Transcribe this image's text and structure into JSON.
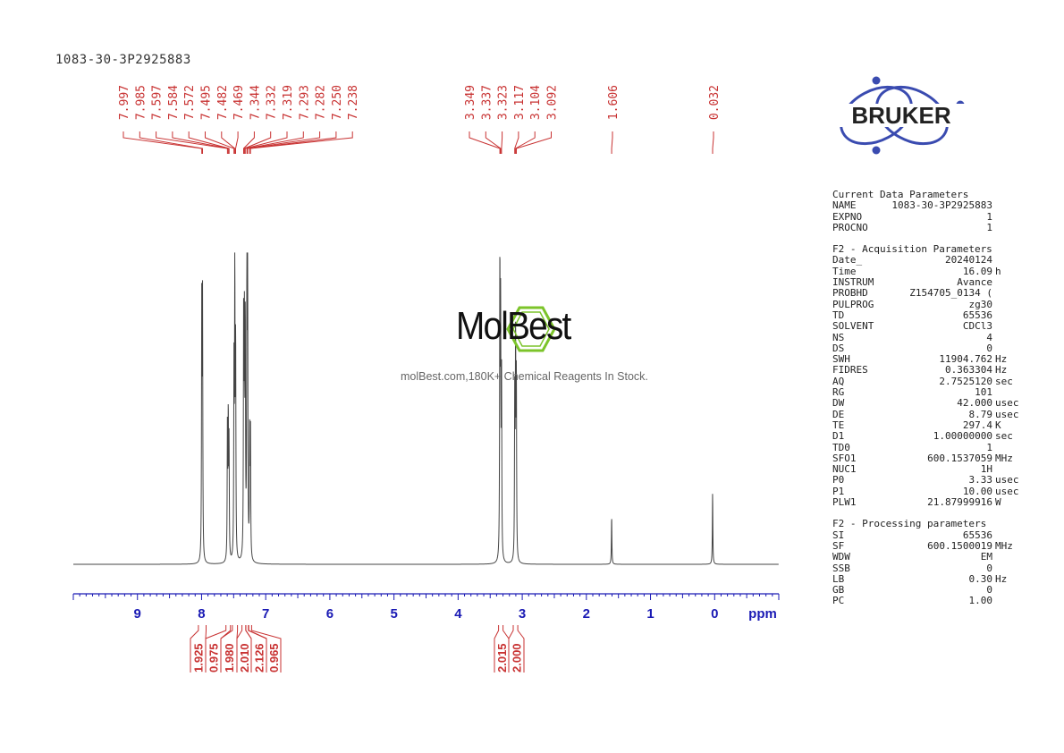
{
  "sample_id": "1083-30-3P2925883",
  "logo": {
    "brand": "BRUKER"
  },
  "watermark": {
    "brand": "MolBest",
    "tagline": "molBest.com,180K+ Chemical Reagents In Stock."
  },
  "colors": {
    "spectrum": "#444444",
    "peak_labels": "#c83232",
    "axis": "#1a1ab4",
    "logo_blue": "#3a4bb0",
    "watermark_green": "#7cc42a"
  },
  "chart_data": {
    "type": "line",
    "title": "",
    "xlabel": "ppm",
    "ylabel": "",
    "xlim": [
      10.0,
      -1.0
    ],
    "x_ticks": [
      "9",
      "8",
      "7",
      "6",
      "5",
      "4",
      "3",
      "2",
      "1",
      "0"
    ],
    "axis_unit": "ppm",
    "grid": false,
    "series": [
      {
        "peaks": [
          {
            "x": 7.997,
            "height": 0.86
          },
          {
            "x": 7.985,
            "height": 0.85
          },
          {
            "x": 7.597,
            "height": 0.44
          },
          {
            "x": 7.584,
            "height": 0.46
          },
          {
            "x": 7.572,
            "height": 0.38
          },
          {
            "x": 7.495,
            "height": 0.62
          },
          {
            "x": 7.482,
            "height": 0.94
          },
          {
            "x": 7.469,
            "height": 0.7
          },
          {
            "x": 7.344,
            "height": 0.82
          },
          {
            "x": 7.332,
            "height": 0.72
          },
          {
            "x": 7.319,
            "height": 0.76
          },
          {
            "x": 7.293,
            "height": 0.97
          },
          {
            "x": 7.282,
            "height": 0.9
          },
          {
            "x": 7.25,
            "height": 0.4
          },
          {
            "x": 7.238,
            "height": 0.42
          },
          {
            "x": 3.349,
            "height": 0.98
          },
          {
            "x": 3.337,
            "height": 0.79
          },
          {
            "x": 3.323,
            "height": 0.6
          },
          {
            "x": 3.117,
            "height": 0.55
          },
          {
            "x": 3.104,
            "height": 0.72
          },
          {
            "x": 3.092,
            "height": 0.58
          },
          {
            "x": 1.606,
            "height": 0.16
          },
          {
            "x": 0.032,
            "height": 0.24
          }
        ]
      }
    ],
    "peak_labels": {
      "group1": [
        "7.997",
        "7.985",
        "7.597",
        "7.584",
        "7.572",
        "7.495",
        "7.482",
        "7.469",
        "7.344",
        "7.332",
        "7.319",
        "7.293",
        "7.282",
        "7.250",
        "7.238"
      ],
      "group2": [
        "3.349",
        "3.337",
        "3.323",
        "3.117",
        "3.104",
        "3.092"
      ],
      "group3": [
        "1.606"
      ],
      "group4": [
        "0.032"
      ]
    },
    "integrals": [
      {
        "from": 8.05,
        "to": 7.93,
        "value": "1.925"
      },
      {
        "from": 7.62,
        "to": 7.55,
        "value": "0.975"
      },
      {
        "from": 7.52,
        "to": 7.44,
        "value": "1.980"
      },
      {
        "from": 7.37,
        "to": 7.31,
        "value": "2.010"
      },
      {
        "from": 7.31,
        "to": 7.27,
        "value": "2.126"
      },
      {
        "from": 7.265,
        "to": 7.22,
        "value": "0.965"
      },
      {
        "from": 3.37,
        "to": 3.3,
        "value": "2.015"
      },
      {
        "from": 3.14,
        "to": 3.07,
        "value": "2.000"
      }
    ]
  },
  "params": {
    "sections": [
      {
        "title": "Current Data Parameters",
        "rows": [
          {
            "name": "NAME",
            "value": "1083-30-3P2925883",
            "unit": ""
          },
          {
            "name": "EXPNO",
            "value": "1",
            "unit": ""
          },
          {
            "name": "PROCNO",
            "value": "1",
            "unit": ""
          }
        ]
      },
      {
        "title": "F2 - Acquisition Parameters",
        "rows": [
          {
            "name": "Date_",
            "value": "20240124",
            "unit": ""
          },
          {
            "name": "Time",
            "value": "16.09",
            "unit": "h"
          },
          {
            "name": "INSTRUM",
            "value": "Avance",
            "unit": ""
          },
          {
            "name": "PROBHD",
            "value": "Z154705_0134 (",
            "unit": ""
          },
          {
            "name": "PULPROG",
            "value": "zg30",
            "unit": ""
          },
          {
            "name": "TD",
            "value": "65536",
            "unit": ""
          },
          {
            "name": "SOLVENT",
            "value": "CDCl3",
            "unit": ""
          },
          {
            "name": "NS",
            "value": "4",
            "unit": ""
          },
          {
            "name": "DS",
            "value": "0",
            "unit": ""
          },
          {
            "name": "SWH",
            "value": "11904.762",
            "unit": "Hz"
          },
          {
            "name": "FIDRES",
            "value": "0.363304",
            "unit": "Hz"
          },
          {
            "name": "AQ",
            "value": "2.7525120",
            "unit": "sec"
          },
          {
            "name": "RG",
            "value": "101",
            "unit": ""
          },
          {
            "name": "DW",
            "value": "42.000",
            "unit": "usec"
          },
          {
            "name": "DE",
            "value": "8.79",
            "unit": "usec"
          },
          {
            "name": "TE",
            "value": "297.4",
            "unit": "K"
          },
          {
            "name": "D1",
            "value": "1.00000000",
            "unit": "sec"
          },
          {
            "name": "TD0",
            "value": "1",
            "unit": ""
          },
          {
            "name": "SFO1",
            "value": "600.1537059",
            "unit": "MHz"
          },
          {
            "name": "NUC1",
            "value": "1H",
            "unit": ""
          },
          {
            "name": "P0",
            "value": "3.33",
            "unit": "usec"
          },
          {
            "name": "P1",
            "value": "10.00",
            "unit": "usec"
          },
          {
            "name": "PLW1",
            "value": "21.87999916",
            "unit": "W"
          }
        ]
      },
      {
        "title": "F2 - Processing parameters",
        "rows": [
          {
            "name": "SI",
            "value": "65536",
            "unit": ""
          },
          {
            "name": "SF",
            "value": "600.1500019",
            "unit": "MHz"
          },
          {
            "name": "WDW",
            "value": "EM",
            "unit": ""
          },
          {
            "name": "SSB",
            "value": "0",
            "unit": ""
          },
          {
            "name": "LB",
            "value": "0.30",
            "unit": "Hz"
          },
          {
            "name": "GB",
            "value": "0",
            "unit": ""
          },
          {
            "name": "PC",
            "value": "1.00",
            "unit": ""
          }
        ]
      }
    ]
  }
}
